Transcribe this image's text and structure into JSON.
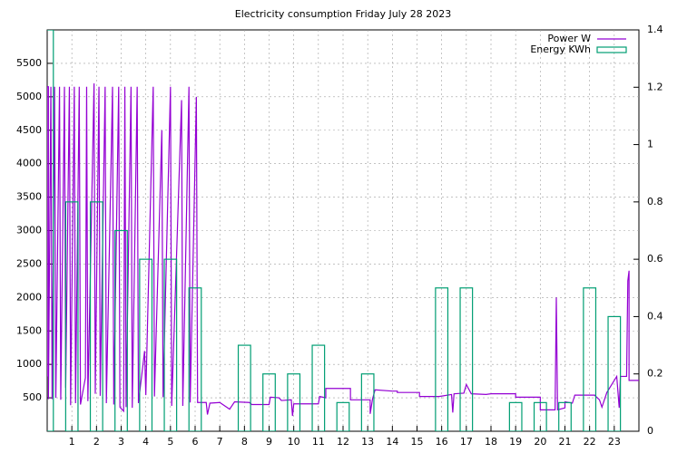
{
  "chart_data": {
    "type": "line",
    "title": "Electricity consumption Friday July 28 2023",
    "xlim": [
      0,
      24
    ],
    "xticks": [
      1,
      2,
      3,
      4,
      5,
      6,
      7,
      8,
      9,
      10,
      11,
      12,
      13,
      14,
      15,
      16,
      17,
      18,
      19,
      20,
      21,
      22,
      23
    ],
    "ylim": [
      0,
      6000
    ],
    "yticks": [
      500,
      1000,
      1500,
      2000,
      2500,
      3000,
      3500,
      4000,
      4500,
      5000,
      5500
    ],
    "y2lim": [
      0,
      1.4
    ],
    "y2ticks": [
      0,
      0.2,
      0.4,
      0.6,
      0.8,
      1,
      1.2,
      1.4
    ],
    "grid": true,
    "legend": "top-right",
    "series": [
      {
        "name": "Power W",
        "color": "#9400d3",
        "axis": "y",
        "x": [
          0,
          0,
          0.05,
          0.05,
          0.15,
          0.2,
          0.3,
          0.35,
          0.5,
          0.55,
          0.7,
          0.75,
          0.9,
          0.95,
          1.1,
          1.15,
          1.3,
          1.35,
          1.55,
          1.6,
          1.65,
          1.9,
          1.95,
          2.1,
          2.15,
          2.35,
          2.4,
          2.65,
          2.7,
          2.9,
          2.95,
          3.1,
          3.15,
          3.2,
          3.4,
          3.45,
          3.65,
          3.7,
          3.95,
          4.0,
          4.3,
          4.35,
          4.65,
          4.7,
          5.0,
          5.05,
          5.45,
          5.5,
          5.75,
          5.8,
          6.05,
          6.1,
          6.45,
          6.5,
          6.6,
          7.0,
          7.4,
          7.6,
          8.2,
          8.3,
          9.0,
          9.05,
          9.4,
          9.5,
          9.9,
          9.95,
          10.0,
          11.0,
          11.05,
          11.3,
          11.3,
          12.3,
          12.3,
          13.1,
          13.1,
          13.2,
          13.3,
          14.0,
          14.2,
          14.2,
          15.1,
          15.1,
          15.9,
          16.4,
          16.45,
          16.5,
          16.9,
          17.0,
          17.2,
          17.8,
          18.0,
          19.0,
          19.0,
          20.0,
          20.0,
          20.6,
          20.65,
          20.7,
          21.0,
          21.0,
          21.3,
          21.4,
          22.2,
          22.4,
          22.5,
          22.7,
          22.9,
          23.1,
          23.2,
          23.25,
          23.5,
          23.55,
          23.6,
          23.6,
          24
        ],
        "values": [
          820,
          5150,
          5150,
          480,
          5150,
          480,
          5150,
          500,
          5150,
          470,
          5150,
          650,
          5150,
          390,
          5150,
          420,
          5150,
          400,
          800,
          5150,
          450,
          5200,
          560,
          5150,
          530,
          5150,
          420,
          5150,
          400,
          5150,
          360,
          300,
          5150,
          360,
          5150,
          350,
          5150,
          420,
          1200,
          540,
          5150,
          520,
          4500,
          510,
          5150,
          380,
          4950,
          380,
          5150,
          430,
          5000,
          430,
          430,
          250,
          420,
          430,
          330,
          440,
          430,
          400,
          400,
          510,
          500,
          460,
          470,
          230,
          410,
          410,
          520,
          500,
          640,
          640,
          470,
          470,
          260,
          490,
          620,
          600,
          600,
          580,
          580,
          520,
          520,
          550,
          280,
          560,
          570,
          700,
          560,
          550,
          560,
          560,
          510,
          510,
          320,
          320,
          2000,
          320,
          350,
          440,
          420,
          540,
          540,
          470,
          360,
          580,
          700,
          820,
          350,
          820,
          820,
          2250,
          2400,
          760,
          760
        ]
      },
      {
        "name": "Energy KWh",
        "color": "#009e73",
        "axis": "y2",
        "type": "bar",
        "x": [
          0,
          1,
          2,
          3,
          4,
          5,
          6,
          7,
          8,
          9,
          10,
          11,
          12,
          13,
          14,
          15,
          16,
          17,
          18,
          19,
          20,
          21,
          22,
          23
        ],
        "values": [
          1.4,
          0.8,
          0.8,
          0.7,
          0.6,
          0.6,
          0.5,
          0,
          0.3,
          0.2,
          0.2,
          0.3,
          0.1,
          0.2,
          0,
          0,
          0.5,
          0.5,
          0,
          0.1,
          0.1,
          0.1,
          0.5,
          0.4
        ]
      }
    ]
  }
}
